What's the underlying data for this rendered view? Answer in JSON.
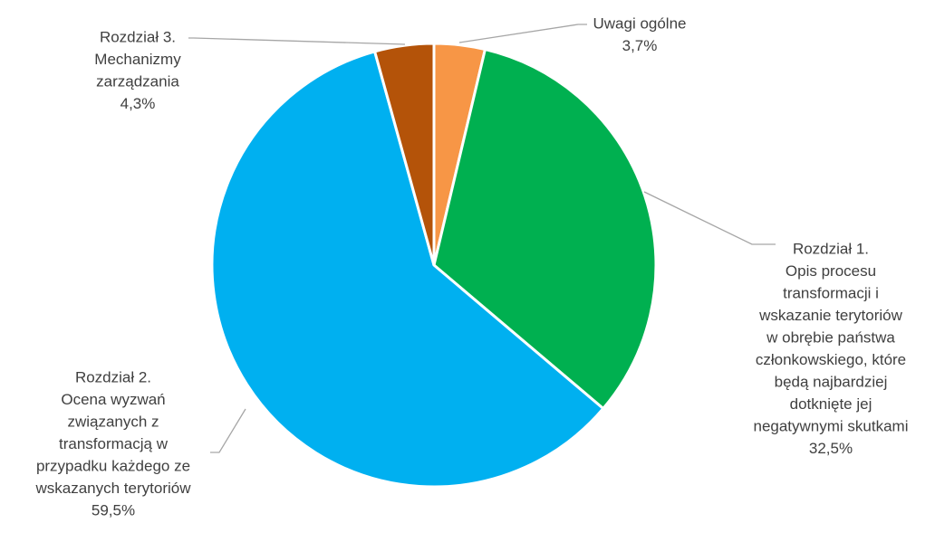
{
  "chart_data": {
    "type": "pie",
    "start_angle_deg": 0,
    "direction": "clockwise",
    "slices": [
      {
        "label_lines": [
          "Uwagi ogólne"
        ],
        "value_label": "3,7%",
        "value": 3.7,
        "color": "#f79646"
      },
      {
        "label_lines": [
          "Rozdział 1.",
          "Opis procesu",
          "transformacji i",
          "wskazanie terytoriów",
          "w obrębie państwa",
          "członkowskiego, które",
          "będą najbardziej",
          "dotknięte jej",
          "negatywnymi skutkami"
        ],
        "value_label": "32,5%",
        "value": 32.5,
        "color": "#00b050"
      },
      {
        "label_lines": [
          "Rozdział 2.",
          "Ocena wyzwań",
          "związanych z",
          "transformacją w",
          "przypadku każdego ze",
          "wskazanych terytoriów"
        ],
        "value_label": "59,5%",
        "value": 59.5,
        "color": "#00b0f0"
      },
      {
        "label_lines": [
          "Rozdział 3.",
          "Mechanizmy",
          "zarządzania"
        ],
        "value_label": "4,3%",
        "value": 4.3,
        "color": "#b45309"
      }
    ]
  }
}
